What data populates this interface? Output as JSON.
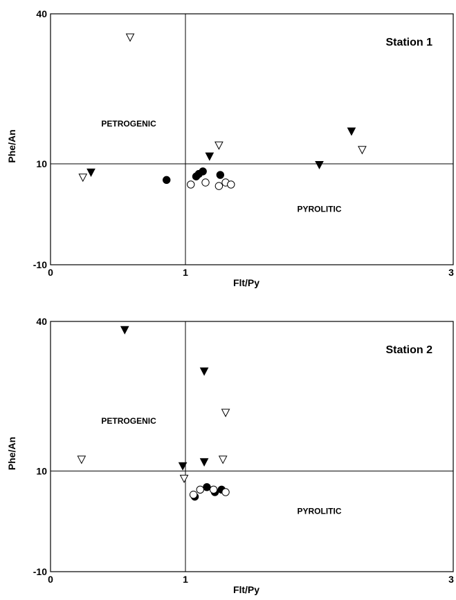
{
  "chart_data": [
    {
      "type": "scatter",
      "title": "Station 1",
      "xlabel": "Flt/Py",
      "ylabel": "Phe/An",
      "xlim": [
        0,
        3
      ],
      "ylim": [
        -10,
        40
      ],
      "xticks": [
        "0",
        "1",
        "3"
      ],
      "yticks": [
        "-10",
        "10",
        "40"
      ],
      "reference_lines": {
        "x": 1,
        "y": 10
      },
      "region_labels": [
        {
          "text": "PETROGENIC",
          "x": 0.58,
          "y": 17.5
        },
        {
          "text": "PYROLITIC",
          "x": 2.0,
          "y": 0.5
        }
      ],
      "grid": false,
      "legend": "none",
      "series": [
        {
          "marker": "filled-triangle-down",
          "points": [
            [
              0.3,
              8.3
            ],
            [
              1.18,
              11.5
            ],
            [
              2.0,
              9.8
            ],
            [
              2.24,
              16.5
            ]
          ]
        },
        {
          "marker": "open-triangle-down",
          "points": [
            [
              0.24,
              7.3
            ],
            [
              0.59,
              35.3
            ],
            [
              1.25,
              13.7
            ],
            [
              2.32,
              12.8
            ]
          ]
        },
        {
          "marker": "filled-circle",
          "points": [
            [
              0.86,
              6.8
            ],
            [
              1.08,
              7.5
            ],
            [
              1.1,
              8.0
            ],
            [
              1.13,
              8.5
            ],
            [
              1.26,
              7.8
            ]
          ]
        },
        {
          "marker": "open-circle",
          "points": [
            [
              1.04,
              5.9
            ],
            [
              1.15,
              6.3
            ],
            [
              1.25,
              5.6
            ],
            [
              1.3,
              6.3
            ],
            [
              1.34,
              5.9
            ]
          ]
        }
      ]
    },
    {
      "type": "scatter",
      "title": "Station 2",
      "xlabel": "Flt/Py",
      "ylabel": "Phe/An",
      "xlim": [
        0,
        3
      ],
      "ylim": [
        -10,
        40
      ],
      "xticks": [
        "0",
        "1",
        "3"
      ],
      "yticks": [
        "-10",
        "10",
        "40"
      ],
      "reference_lines": {
        "x": 1,
        "y": 10
      },
      "region_labels": [
        {
          "text": "PETROGENIC",
          "x": 0.58,
          "y": 19.5
        },
        {
          "text": "PYROLITIC",
          "x": 2.0,
          "y": 1.5
        }
      ],
      "grid": false,
      "legend": "none",
      "series": [
        {
          "marker": "filled-triangle-down",
          "points": [
            [
              0.55,
              38.3
            ],
            [
              0.98,
              11.0
            ],
            [
              1.14,
              11.8
            ],
            [
              1.14,
              30.0
            ]
          ]
        },
        {
          "marker": "open-triangle-down",
          "points": [
            [
              0.23,
              12.3
            ],
            [
              0.99,
              8.5
            ],
            [
              1.28,
              12.3
            ],
            [
              1.3,
              21.7
            ]
          ]
        },
        {
          "marker": "filled-circle",
          "points": [
            [
              1.07,
              4.9
            ],
            [
              1.16,
              6.8
            ],
            [
              1.22,
              5.8
            ],
            [
              1.27,
              6.3
            ]
          ]
        },
        {
          "marker": "open-circle",
          "points": [
            [
              1.06,
              5.3
            ],
            [
              1.11,
              6.3
            ],
            [
              1.21,
              6.3
            ],
            [
              1.3,
              5.8
            ]
          ]
        }
      ]
    }
  ]
}
